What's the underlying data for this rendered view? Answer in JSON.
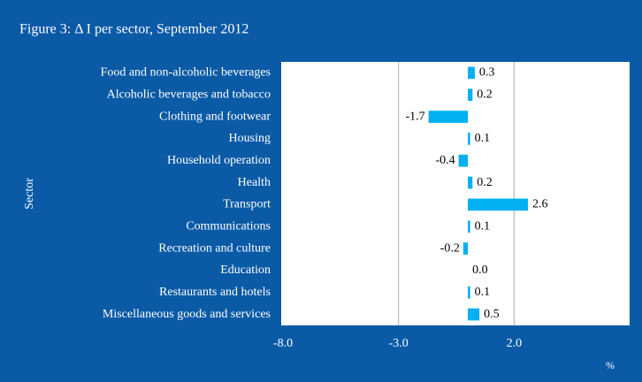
{
  "chart_data": {
    "type": "bar",
    "orientation": "horizontal",
    "title": "Figure 3: Δ I per sector, September 2012",
    "y_label": "Sector",
    "x_label": "%",
    "categories": [
      "Food and non-alcoholic beverages",
      "Alcoholic beverages and tobacco",
      "Clothing and footwear",
      "Housing",
      "Household operation",
      "Health",
      "Transport",
      "Communications",
      "Recreation and culture",
      "Education",
      "Restaurants and hotels",
      "Miscellaneous goods and services"
    ],
    "values": [
      0.3,
      0.2,
      -1.7,
      0.1,
      -0.4,
      0.2,
      2.6,
      0.1,
      -0.2,
      0.0,
      0.1,
      0.5
    ],
    "value_labels": [
      "0.3",
      "0.2",
      "-1.7",
      "0.1",
      "-0.4",
      "0.2",
      "2.6",
      "0.1",
      "-0.2",
      "0.0",
      "0.1",
      "0.5"
    ],
    "color": "#00b0f0",
    "xlim": [
      -8,
      7
    ],
    "xticks": [
      {
        "value": -8,
        "label": "-8.0"
      },
      {
        "value": -3,
        "label": "-3.0"
      },
      {
        "value": 2,
        "label": "2.0"
      }
    ],
    "grid": true
  }
}
